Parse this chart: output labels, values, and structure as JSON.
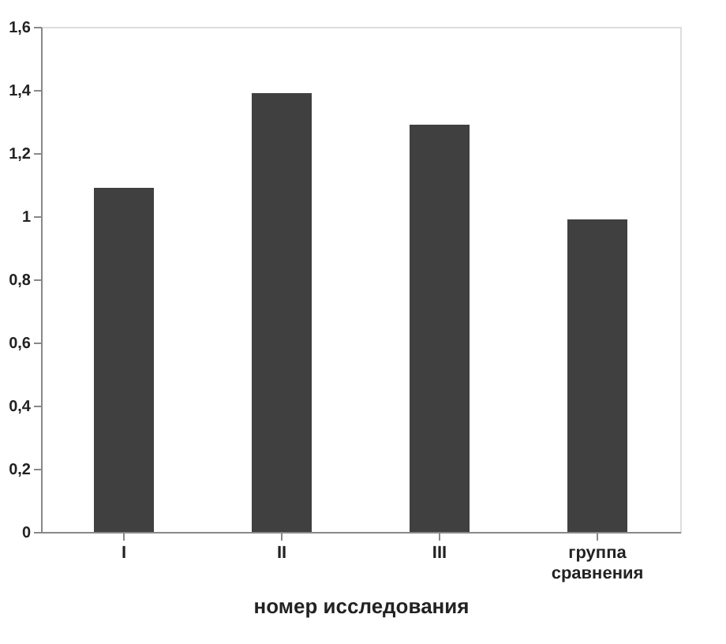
{
  "chart_data": {
    "type": "bar",
    "xlabel": "номер исследования",
    "categories": [
      "I",
      "II",
      "III",
      "группа сравнения"
    ],
    "values": [
      1.09,
      1.39,
      1.29,
      0.99
    ],
    "color": "#404040",
    "ylim": [
      0,
      1.6
    ],
    "yticks": [
      0,
      {
        "value": 0.2,
        "label": "0,2"
      },
      {
        "value": 0.4,
        "label": "0,4"
      },
      {
        "value": 0.6,
        "label": "0,6"
      },
      {
        "value": 0.8,
        "label": "0,8"
      },
      1,
      {
        "value": 1.2,
        "label": "1,2"
      },
      {
        "value": 1.4,
        "label": "1,4"
      },
      {
        "value": 1.6,
        "label": "1,6"
      }
    ],
    "grid": false
  }
}
